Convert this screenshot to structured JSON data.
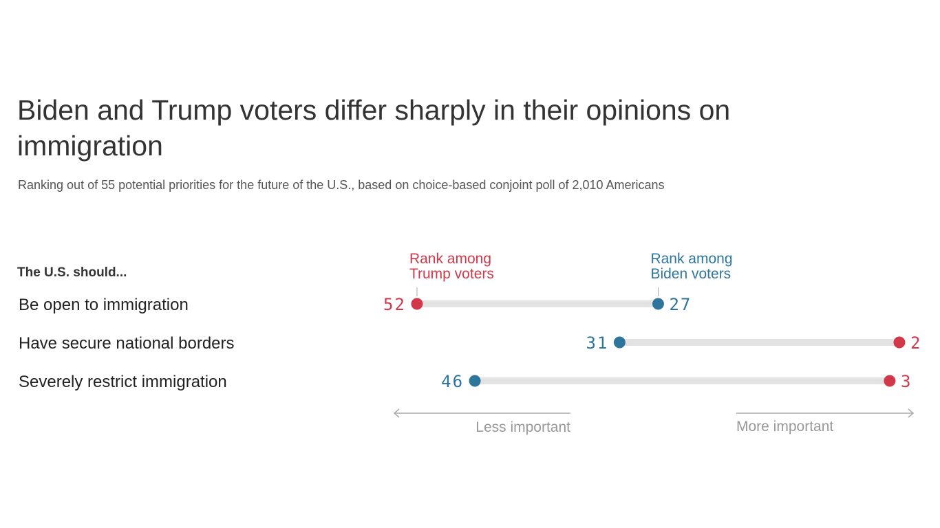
{
  "title": "Biden and Trump voters differ sharply in their opinions on immigration",
  "subtitle": "Ranking out of 55 potential priorities for the future of the U.S., based on choice-based conjoint poll of 2,010 Americans",
  "colors": {
    "trump": "#d1384a",
    "biden": "#2e759b",
    "track": "#e3e3e3",
    "axis": "#aaaaaa"
  },
  "chart_data": {
    "type": "dumbbell",
    "row_header": "The U.S. should...",
    "categories": [
      "Be open to immigration",
      "Have secure national borders",
      "Severely restrict immigration"
    ],
    "series": [
      {
        "name": "Rank among Trump voters",
        "name_lines": [
          "Rank among",
          "Trump voters"
        ],
        "values": [
          52,
          2,
          3
        ]
      },
      {
        "name": "Rank among Biden voters",
        "name_lines": [
          "Rank among",
          "Biden voters"
        ],
        "values": [
          27,
          31,
          46
        ]
      }
    ],
    "xlim": [
      55,
      1
    ],
    "axis_labels": {
      "left": "Less important",
      "right": "More important"
    }
  }
}
